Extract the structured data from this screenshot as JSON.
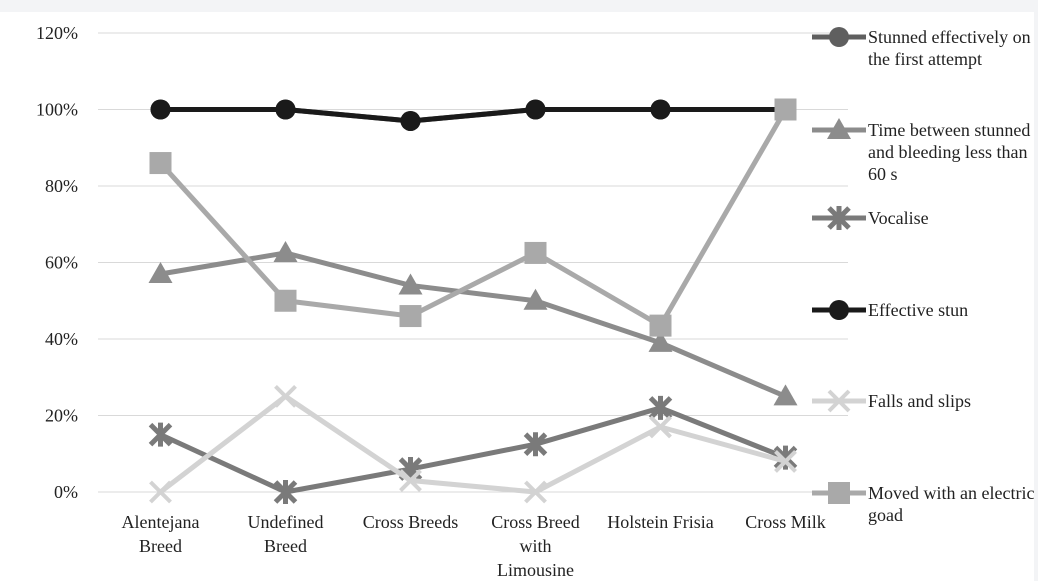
{
  "chart_data": {
    "type": "line",
    "categories": [
      "Alentejana Breed",
      "Undefined Breed",
      "Cross Breeds",
      "Cross Breed with Limousine",
      "Holstein Frisia",
      "Cross Milk"
    ],
    "series": [
      {
        "name": "Stunned effectively on the first attempt",
        "color": "#5f5f5f",
        "marker": "circle",
        "values": [
          100,
          100,
          97,
          100,
          100,
          100
        ]
      },
      {
        "name": "Time between stunned and bleeding less than 60 s",
        "color": "#8c8c8c",
        "marker": "triangle",
        "values": [
          57,
          62.5,
          54,
          50,
          39,
          25
        ]
      },
      {
        "name": "Vocalise",
        "color": "#7a7a7a",
        "marker": "asterisk",
        "values": [
          15,
          0,
          6,
          12.5,
          22,
          9
        ]
      },
      {
        "name": "Effective stun",
        "color": "#1a1a1a",
        "marker": "circle",
        "values": [
          100,
          100,
          97,
          100,
          100,
          100
        ]
      },
      {
        "name": "Falls and slips",
        "color": "#d3d3d3",
        "marker": "x",
        "values": [
          0,
          25,
          3,
          0,
          17,
          8
        ]
      },
      {
        "name": "Moved with an electric goad",
        "color": "#a9a9a9",
        "marker": "square",
        "values": [
          86,
          50,
          46,
          62.5,
          43.5,
          100
        ]
      }
    ],
    "ylim": [
      0,
      120
    ],
    "yticks": [
      {
        "value": 0,
        "label": "0%"
      },
      {
        "value": 20,
        "label": "20%"
      },
      {
        "value": 40,
        "label": "40%"
      },
      {
        "value": 60,
        "label": "60%"
      },
      {
        "value": 80,
        "label": "80%"
      },
      {
        "value": 100,
        "label": "100%"
      },
      {
        "value": 120,
        "label": "120%"
      }
    ],
    "grid": true,
    "legend": "right"
  }
}
